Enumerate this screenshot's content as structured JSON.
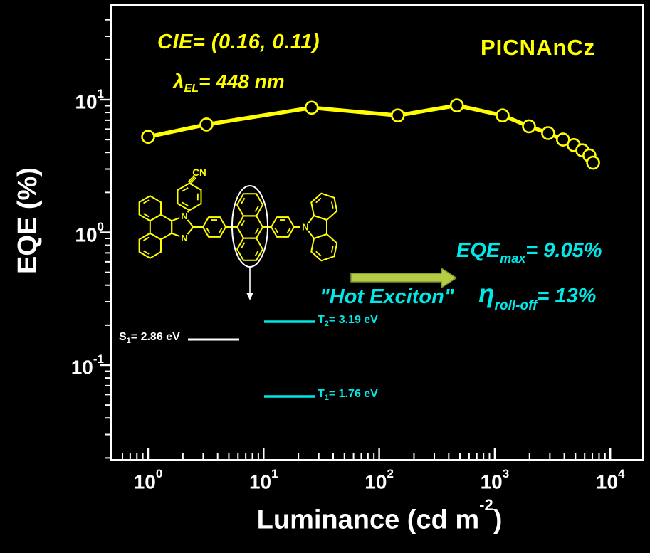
{
  "chart_data": {
    "type": "line",
    "title": "",
    "xlabel": {
      "pre": "Luminance (cd m",
      "sup": "-2",
      "post": ")"
    },
    "ylabel": "EQE (%)",
    "x_scale": "log",
    "y_scale": "log",
    "xlim": [
      0.5,
      19000
    ],
    "ylim": [
      0.019,
      52
    ],
    "log_base": "10",
    "x_tick_exponents": [
      0,
      1,
      2,
      3,
      4
    ],
    "y_tick_exponents": [
      1,
      0,
      -1
    ],
    "grid": false,
    "legend": "none",
    "series": [
      {
        "name": "PICNAnCz",
        "marker": "open-circle",
        "color": "#ffff00",
        "luminance_cd_m2": [
          1.0,
          3.2,
          26,
          145,
          470,
          1170,
          1980,
          2900,
          3900,
          4830,
          5730,
          6600,
          7100
        ],
        "eqe_percent": [
          5.25,
          6.5,
          8.7,
          7.6,
          9.05,
          7.6,
          6.3,
          5.6,
          5.0,
          4.55,
          4.15,
          3.8,
          3.35
        ]
      }
    ]
  },
  "annotations": {
    "cie": "CIE= (0.16, 0.11)",
    "lambda": {
      "sym": "λ",
      "sub": "EL",
      "rest": "= 448 nm"
    },
    "device": "PICNAnCz",
    "eqe_max": {
      "base": "EQE",
      "sub": "max",
      "rest": "= 9.05%"
    },
    "hot_exciton": "\"Hot Exciton\"",
    "roll_off": {
      "base": "η",
      "sub": "roll-off",
      "rest": "= 13%"
    }
  },
  "energy_levels": [
    {
      "sym": "S",
      "sub": "1",
      "rest": "= 2.86 eV",
      "color": "#ffffff"
    },
    {
      "sym": "T",
      "sub": "2",
      "rest": "= 3.19 eV",
      "color": "#00e8e8"
    },
    {
      "sym": "T",
      "sub": "1",
      "rest": "= 1.76 eV",
      "color": "#00e8e8"
    }
  ],
  "molecule": {
    "labels": {
      "cn": "CN",
      "n_imidazole_top": "N",
      "n_imidazole_bottom": "N",
      "n_carbazole": "N"
    }
  },
  "colors": {
    "background": "#000000",
    "axis": "#ffffff",
    "curve": "#ffff00",
    "annotation_yellow": "#ffff00",
    "annotation_cyan": "#00e8e8",
    "arrow_green": "#b5cc45",
    "arrow_green_edge": "#7f9430",
    "ellipse": "#ffffff"
  }
}
